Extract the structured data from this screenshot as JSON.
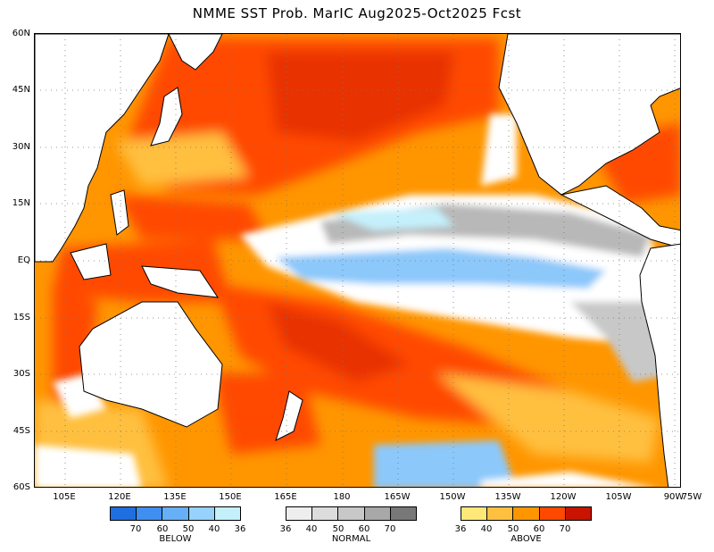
{
  "title": "NMME SST Prob. MarIC  Aug2025-Oct2025 Fcst",
  "axes": {
    "lat_labels": [
      "60N",
      "45N",
      "30N",
      "15N",
      "EQ",
      "15S",
      "30S",
      "45S",
      "60S"
    ],
    "lon_labels": [
      "105E",
      "120E",
      "135E",
      "150E",
      "165E",
      "180",
      "165W",
      "150W",
      "135W",
      "120W",
      "105W",
      "90W",
      "75W"
    ]
  },
  "legend": {
    "below": {
      "label": "BELOW",
      "colors": [
        "#1f6fe0",
        "#3f8ff0",
        "#66b0f8",
        "#96d2fc",
        "#c4f0fc"
      ],
      "ticks": [
        "70",
        "60",
        "50",
        "40",
        "36"
      ]
    },
    "normal": {
      "label": "NORMAL",
      "colors": [
        "#eeeeee",
        "#dcdcdc",
        "#c8c8c8",
        "#a8a8a8",
        "#787878"
      ],
      "ticks": [
        "36",
        "40",
        "50",
        "60",
        "70"
      ]
    },
    "above": {
      "label": "ABOVE",
      "colors": [
        "#ffe878",
        "#ffc040",
        "#ff9600",
        "#ff4800",
        "#c81400"
      ],
      "ticks": [
        "36",
        "40",
        "50",
        "60",
        "70"
      ]
    }
  }
}
